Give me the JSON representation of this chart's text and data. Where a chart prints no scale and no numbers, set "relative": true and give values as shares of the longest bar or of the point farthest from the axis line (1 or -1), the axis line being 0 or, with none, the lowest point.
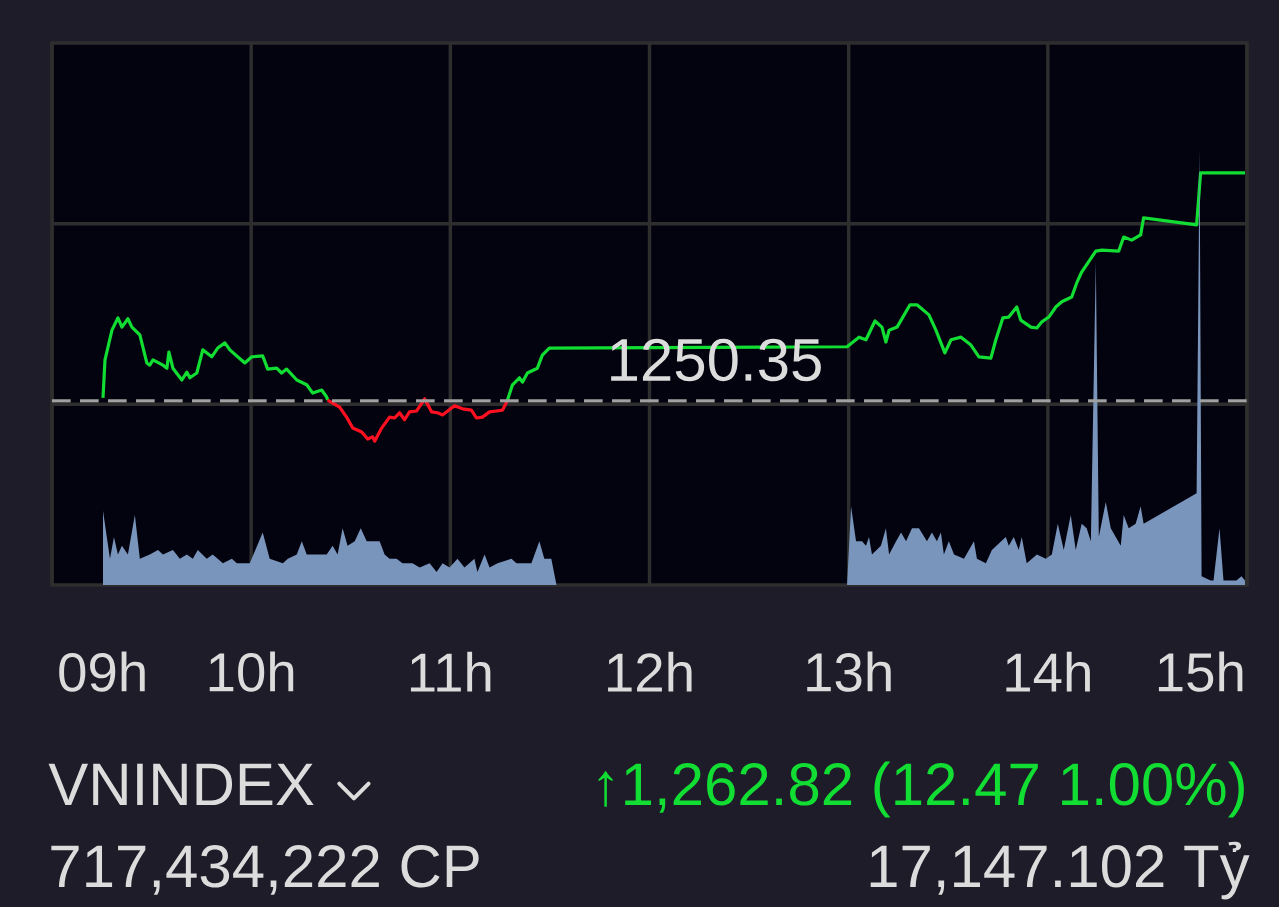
{
  "chart_data": {
    "type": "line",
    "title": "VNINDEX",
    "relative": true,
    "annotations": [
      "1250.35",
      "↑1,262.82 (12.47 1.00%)",
      "717,434,222 CP",
      "17,147.102 Tỷ"
    ],
    "xlim": [
      9,
      15
    ],
    "xticks": [
      {
        "value": 9,
        "label": "09h"
      },
      {
        "value": 10,
        "label": "10h"
      },
      {
        "value": 11,
        "label": "11h"
      },
      {
        "value": 12,
        "label": "12h"
      },
      {
        "value": 13,
        "label": "13h"
      },
      {
        "value": 14,
        "label": "14h"
      },
      {
        "value": 15,
        "label": "15h"
      }
    ],
    "grid": true,
    "tick_labels": "x",
    "ref_lines": [
      {
        "axis": "y",
        "value": 0.421,
        "color": "#a0a0a0",
        "line_style": "dashed"
      }
    ],
    "series": [
      {
        "color": "#11dd33",
        "x": [
          9.256,
          9.266,
          9.301,
          9.331,
          9.351,
          9.381,
          9.401,
          9.441,
          9.476,
          9.491,
          9.507,
          9.557,
          9.577,
          9.587,
          9.607,
          9.652,
          9.677,
          9.692,
          9.727,
          9.757,
          9.802,
          9.832,
          9.868,
          9.893,
          9.968,
          10.003,
          10.058,
          10.083,
          10.128,
          10.153,
          10.178,
          10.229,
          10.279,
          10.309,
          10.354,
          10.379,
          10.384,
          10.8,
          11.287,
          11.312,
          11.347,
          11.362,
          11.387,
          11.437,
          11.462,
          11.497,
          12.992,
          13.052,
          13.087,
          13.132,
          13.167,
          13.187,
          13.203,
          13.243,
          13.308,
          13.343,
          13.403,
          13.438,
          13.483,
          13.514,
          13.564,
          13.614,
          13.654,
          13.714,
          13.739,
          13.774,
          13.804,
          13.844,
          13.864,
          13.915,
          13.945,
          13.97,
          14.005,
          14.04,
          14.07,
          14.12,
          14.145,
          14.17,
          14.241,
          14.271,
          14.356,
          14.381,
          14.421,
          14.466,
          14.481,
          14.747,
          14.767,
          14.99
        ],
        "values": [
          0.428,
          0.515,
          0.583,
          0.611,
          0.59,
          0.609,
          0.59,
          0.572,
          0.508,
          0.503,
          0.515,
          0.503,
          0.496,
          0.533,
          0.496,
          0.469,
          0.487,
          0.474,
          0.485,
          0.538,
          0.522,
          0.542,
          0.554,
          0.538,
          0.508,
          0.522,
          0.524,
          0.494,
          0.496,
          0.485,
          0.494,
          0.469,
          0.458,
          0.439,
          0.446,
          0.43,
          0.423,
          null,
          0.423,
          0.458,
          0.474,
          0.464,
          0.485,
          0.496,
          0.526,
          0.542,
          0.545,
          0.567,
          0.561,
          0.604,
          0.59,
          0.556,
          0.583,
          0.59,
          0.641,
          0.641,
          0.618,
          0.583,
          0.531,
          0.561,
          0.567,
          0.549,
          0.522,
          0.519,
          0.561,
          0.611,
          0.613,
          0.636,
          0.606,
          0.59,
          0.588,
          0.602,
          0.613,
          0.636,
          0.648,
          0.659,
          0.691,
          0.716,
          0.764,
          0.766,
          0.764,
          0.796,
          0.789,
          0.801,
          0.84,
          0.824,
          0.943,
          0.943
        ]
      },
      {
        "color": "#ff1020",
        "x": [
          10.384,
          10.444,
          10.479,
          10.51,
          10.555,
          10.585,
          10.61,
          10.62,
          10.655,
          10.695,
          10.72,
          10.745,
          10.77,
          10.795,
          10.83,
          10.871,
          10.906,
          10.936,
          10.961,
          11.021,
          11.061,
          11.106,
          11.131,
          11.161,
          11.197,
          11.232,
          11.262,
          11.287
        ],
        "values": [
          0.423,
          0.407,
          0.384,
          0.359,
          0.35,
          0.334,
          0.339,
          0.329,
          0.359,
          0.384,
          0.382,
          0.394,
          0.378,
          0.396,
          0.398,
          0.426,
          0.396,
          0.394,
          0.389,
          0.41,
          0.403,
          0.4,
          0.382,
          0.384,
          0.396,
          0.398,
          0.4,
          0.423
        ]
      },
      {
        "type": "area",
        "color": "#7a95bb",
        "x": [
          9.256,
          9.256,
          9.291,
          9.311,
          9.331,
          9.351,
          9.381,
          9.416,
          9.441,
          9.491,
          9.532,
          9.557,
          9.607,
          9.642,
          9.677,
          9.707,
          9.732,
          9.777,
          9.807,
          9.858,
          9.903,
          9.928,
          9.968,
          9.993,
          10.058,
          10.093,
          10.159,
          10.184,
          10.229,
          10.254,
          10.279,
          10.329,
          10.379,
          10.409,
          10.434,
          10.459,
          10.484,
          10.52,
          10.55,
          10.58,
          10.61,
          10.645,
          10.67,
          10.695,
          10.73,
          10.76,
          10.81,
          10.846,
          10.896,
          10.931,
          10.961,
          10.996,
          11.036,
          11.071,
          11.121,
          11.136,
          11.172,
          11.197,
          11.237,
          11.307,
          11.332,
          11.382,
          11.407,
          11.447,
          11.472,
          11.507,
          11.533,
          12.992,
          13.012,
          13.037,
          13.067,
          13.087,
          13.102,
          13.117,
          13.162,
          13.187,
          13.203,
          13.238,
          13.263,
          13.288,
          13.318,
          13.353,
          13.393,
          13.418,
          13.443,
          13.463,
          13.478,
          13.503,
          13.529,
          13.579,
          13.629,
          13.644,
          13.689,
          13.719,
          13.789,
          13.804,
          13.829,
          13.854,
          13.869,
          13.894,
          13.945,
          13.99,
          14.02,
          14.05,
          14.08,
          14.115,
          14.14,
          14.17,
          14.195,
          14.216,
          14.241,
          14.256,
          14.291,
          14.316,
          14.341,
          14.366,
          14.381,
          14.406,
          14.441,
          14.466,
          14.481,
          14.747,
          14.762,
          14.772,
          14.817,
          14.832,
          14.862,
          14.882,
          14.947,
          14.972,
          14.99
        ],
        "values": [
          0,
          0.17,
          0.06,
          0.11,
          0.07,
          0.09,
          0.07,
          0.16,
          0.06,
          0.07,
          0.08,
          0.07,
          0.08,
          0.06,
          0.07,
          0.06,
          0.08,
          0.06,
          0.07,
          0.05,
          0.06,
          0.05,
          0.05,
          0.05,
          0.12,
          0.06,
          0.05,
          0.06,
          0.07,
          0.1,
          0.07,
          0.07,
          0.07,
          0.09,
          0.07,
          0.13,
          0.09,
          0.1,
          0.13,
          0.1,
          0.1,
          0.1,
          0.07,
          0.06,
          0.06,
          0.05,
          0.05,
          0.04,
          0.05,
          0.03,
          0.05,
          0.04,
          0.06,
          0.04,
          0.06,
          0.03,
          0.07,
          0.04,
          0.05,
          0.06,
          0.05,
          0.05,
          0.05,
          0.1,
          0.06,
          0.06,
          0,
          0,
          0.18,
          0.1,
          0.1,
          0.09,
          0.11,
          0.07,
          0.09,
          0.13,
          0.07,
          0.1,
          0.12,
          0.1,
          0.13,
          0.13,
          0.1,
          0.12,
          0.1,
          0.12,
          0.07,
          0.1,
          0.07,
          0.06,
          0.1,
          0.06,
          0.05,
          0.08,
          0.11,
          0.09,
          0.11,
          0.08,
          0.11,
          0.05,
          0.07,
          0.06,
          0.07,
          0.14,
          0.08,
          0.16,
          0.08,
          0.14,
          0.13,
          0.1,
          0.74,
          0.11,
          0.19,
          0.13,
          0.11,
          0.09,
          0.16,
          0.13,
          0.14,
          0.18,
          0.14,
          0.21,
          1,
          0.02,
          0.01,
          0.01,
          0.13,
          0.01,
          0.01,
          0.02,
          0.01
        ]
      }
    ]
  }
}
